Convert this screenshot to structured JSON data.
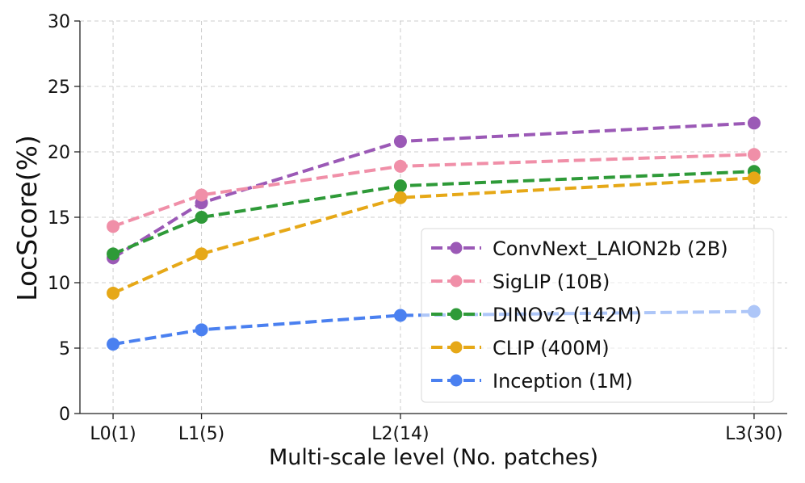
{
  "chart_data": {
    "type": "line",
    "title": "",
    "xlabel": "Multi-scale level (No. patches)",
    "ylabel": "LocScore(%)",
    "x": [
      1,
      5,
      14,
      30
    ],
    "xticks": [
      {
        "value": 1,
        "label": "L0(1)"
      },
      {
        "value": 5,
        "label": "L1(5)"
      },
      {
        "value": 14,
        "label": "L2(14)"
      },
      {
        "value": 30,
        "label": "L3(30)"
      }
    ],
    "xlim": [
      -0.5,
      31.5
    ],
    "ylim": [
      0,
      30
    ],
    "yticks": [
      0,
      5,
      10,
      15,
      20,
      25,
      30
    ],
    "grid": true,
    "legend_position": "lower-right",
    "series": [
      {
        "name": "ConvNext_LAION2b (2B)",
        "color": "#9b59b6",
        "values": [
          11.9,
          16.1,
          20.8,
          22.2
        ]
      },
      {
        "name": "SigLIP (10B)",
        "color": "#f08fa8",
        "values": [
          14.3,
          16.7,
          18.9,
          19.8
        ]
      },
      {
        "name": "DINOv2 (142M)",
        "color": "#2e9a38",
        "values": [
          12.2,
          15.0,
          17.4,
          18.5
        ]
      },
      {
        "name": "CLIP (400M)",
        "color": "#e6a817",
        "values": [
          9.2,
          12.2,
          16.5,
          18.0
        ]
      },
      {
        "name": "Inception (1M)",
        "color": "#4a80f0",
        "values": [
          5.3,
          6.4,
          7.5,
          7.8
        ]
      }
    ]
  }
}
